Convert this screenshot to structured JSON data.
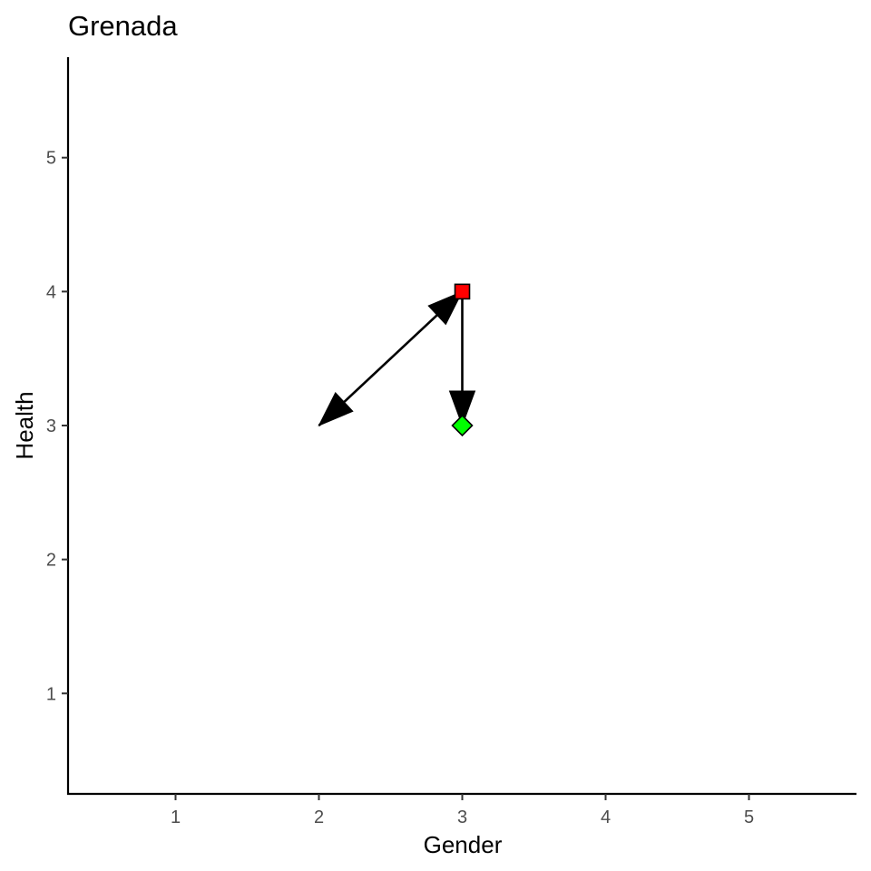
{
  "chart_data": {
    "type": "scatter",
    "title": "Grenada",
    "xlabel": "Gender",
    "ylabel": "Health",
    "xlim": [
      0.25,
      5.75
    ],
    "ylim": [
      0.25,
      5.75
    ],
    "x_ticks": [
      "1",
      "2",
      "3",
      "4",
      "5"
    ],
    "y_ticks": [
      "1",
      "2",
      "3",
      "4",
      "5"
    ],
    "grid": false,
    "points": [
      {
        "x": 3,
        "y": 4,
        "shape": "square",
        "color": "#ff0000"
      },
      {
        "x": 3,
        "y": 3,
        "shape": "diamond",
        "color": "#00ff00"
      }
    ],
    "arrows": [
      {
        "from": [
          3,
          4
        ],
        "to": [
          3,
          3
        ],
        "heads": "end"
      },
      {
        "from": [
          3,
          4
        ],
        "to": [
          2,
          3
        ],
        "heads": "both"
      }
    ]
  }
}
